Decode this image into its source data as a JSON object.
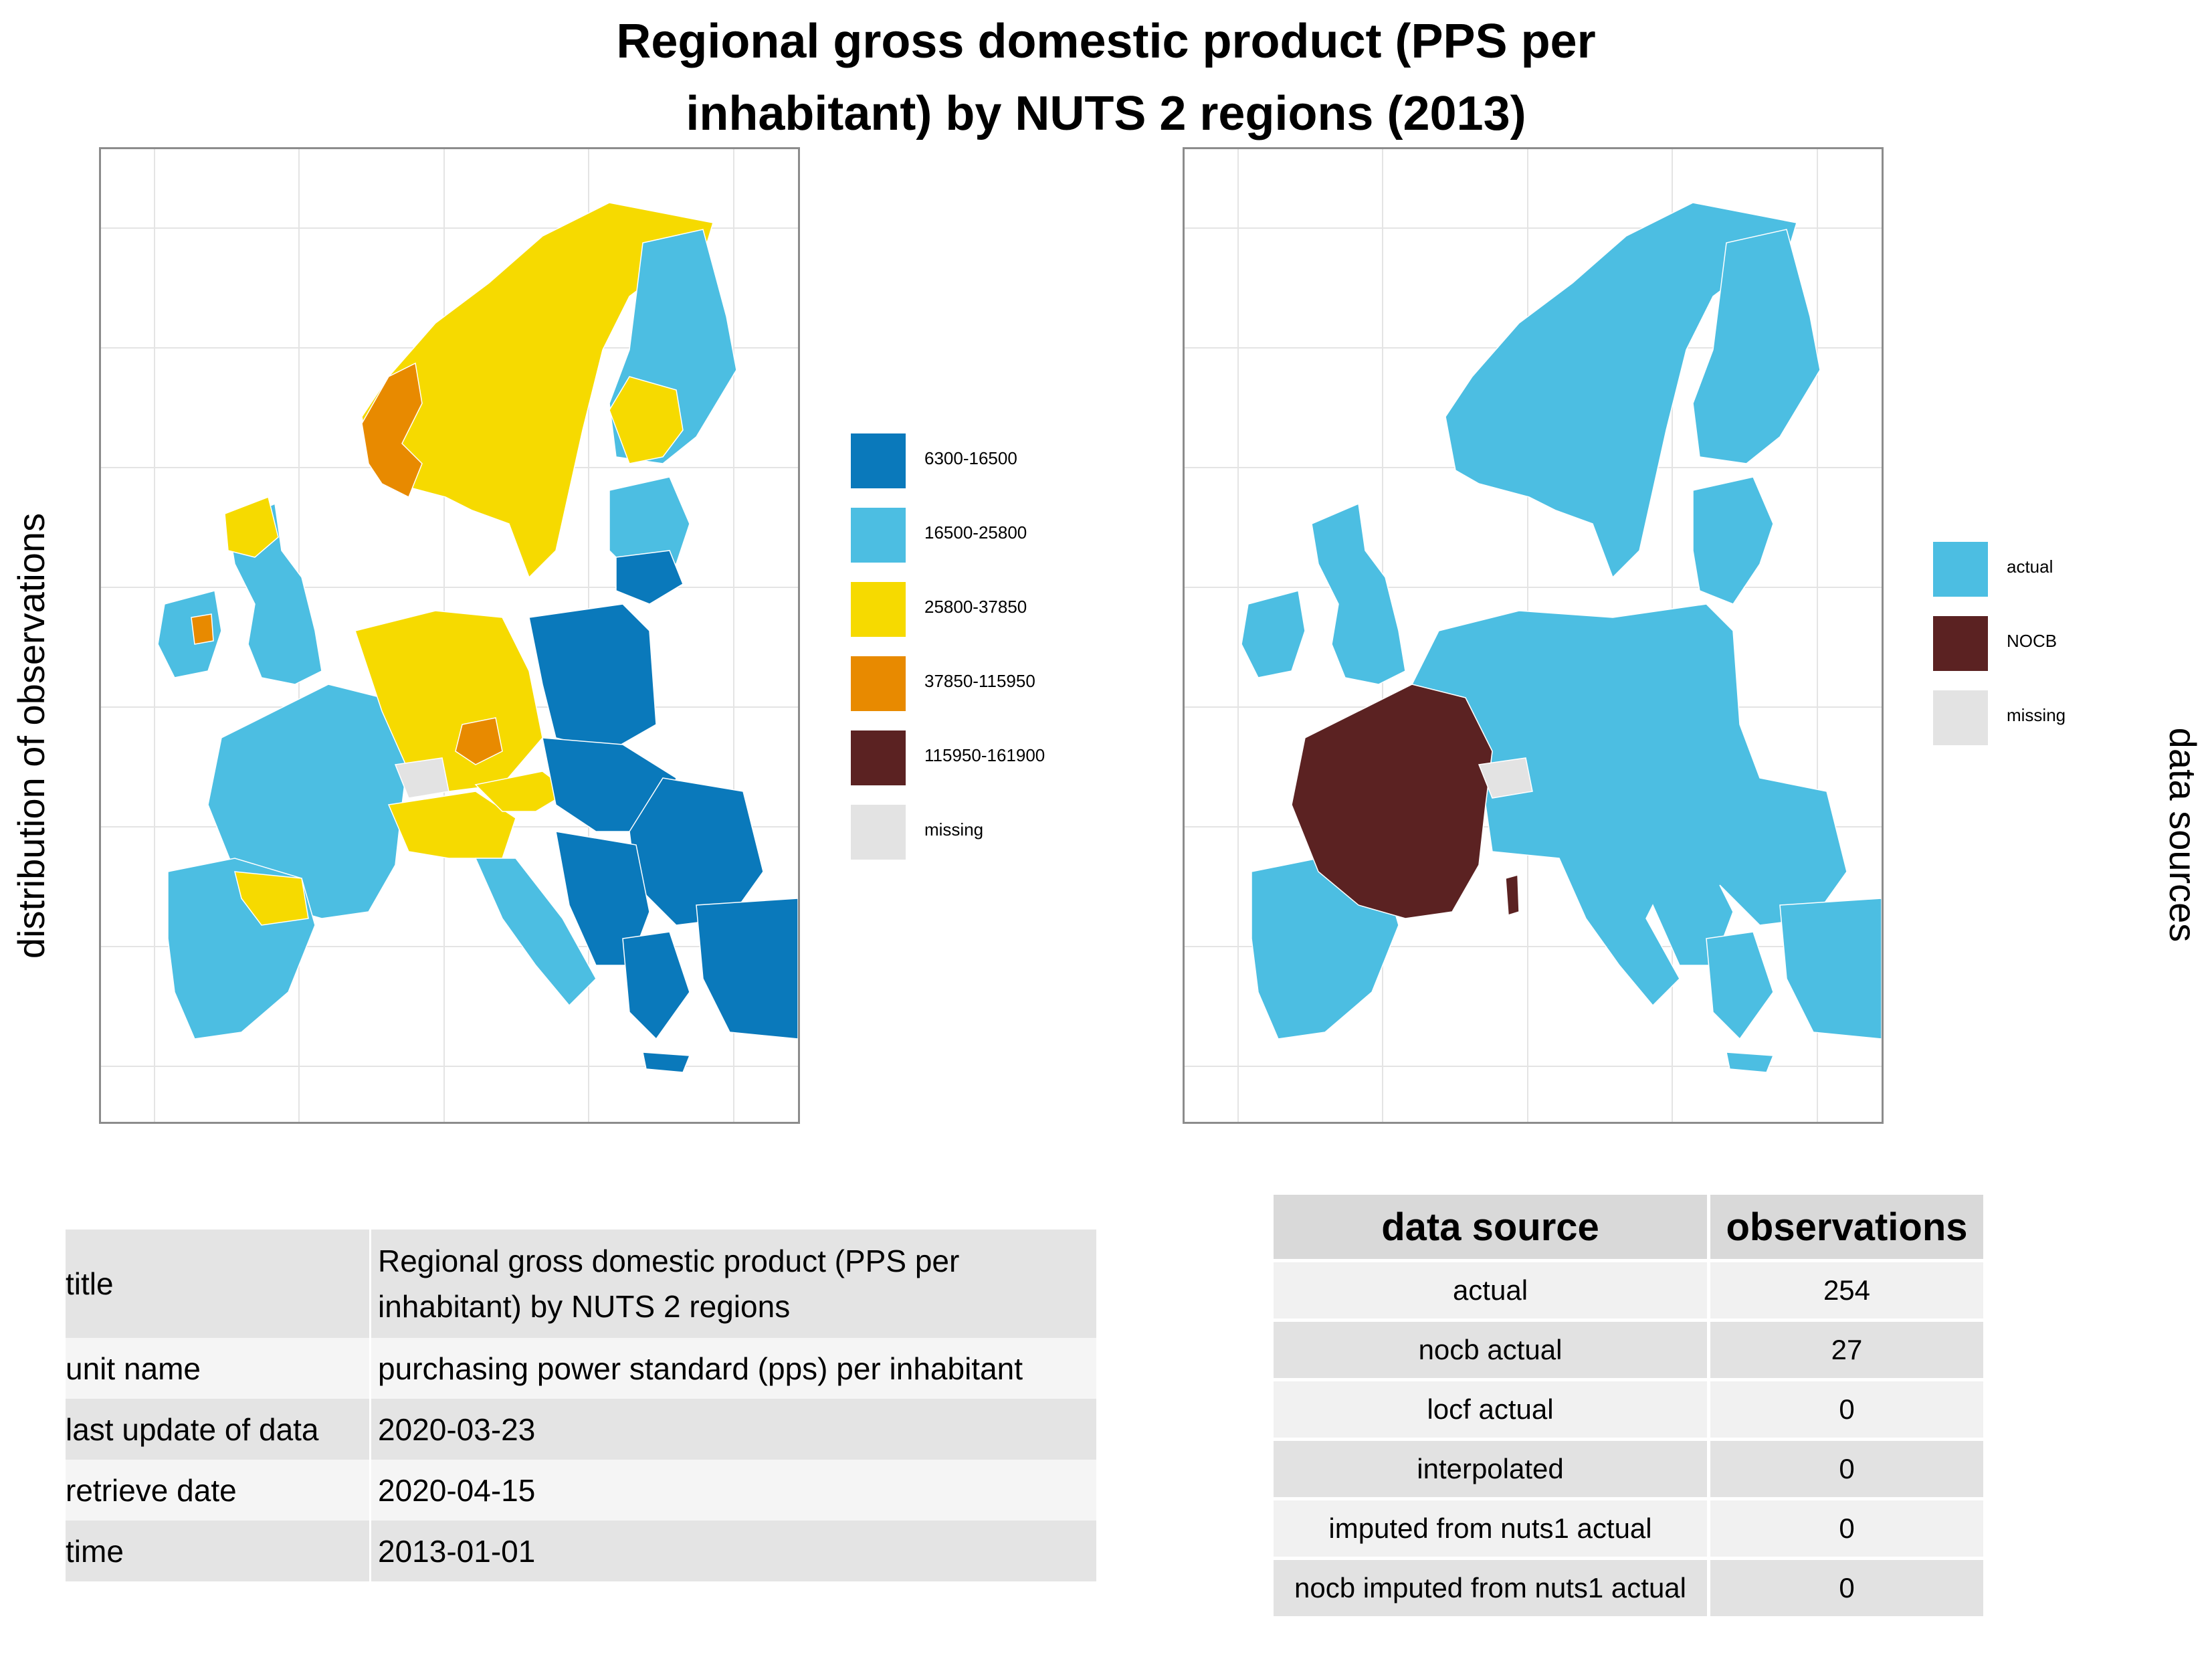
{
  "title": {
    "line1": "Regional gross domestic product (PPS per",
    "line2": "inhabitant) by NUTS 2 regions (2013)"
  },
  "left_axis_label": "distribution of observations",
  "right_axis_label": "data sources",
  "legend_left": [
    {
      "label": "6300-16500",
      "color": "#0a79bb"
    },
    {
      "label": "16500-25800",
      "color": "#4cbee2"
    },
    {
      "label": "25800-37850",
      "color": "#f6da00"
    },
    {
      "label": "37850-115950",
      "color": "#e88a00"
    },
    {
      "label": "115950-161900",
      "color": "#5b2222"
    },
    {
      "label": "missing",
      "color": "#e3e3e3"
    }
  ],
  "legend_right": [
    {
      "label": "actual",
      "color": "#4cbee2"
    },
    {
      "label": "NOCB",
      "color": "#5b2222"
    },
    {
      "label": "missing",
      "color": "#e3e3e3"
    }
  ],
  "metadata": [
    {
      "key": "title",
      "value": "Regional gross domestic product (PPS per inhabitant) by NUTS 2 regions"
    },
    {
      "key": "unit name",
      "value": "purchasing power standard (pps) per inhabitant"
    },
    {
      "key": "last update of data",
      "value": "2020-03-23"
    },
    {
      "key": "retrieve date",
      "value": "2020-04-15"
    },
    {
      "key": "time",
      "value": "2013-01-01"
    }
  ],
  "source_table": {
    "headers": [
      "data source",
      "observations"
    ],
    "rows": [
      {
        "source": "actual",
        "observations": "254"
      },
      {
        "source": "nocb actual",
        "observations": "27"
      },
      {
        "source": "locf actual",
        "observations": "0"
      },
      {
        "source": "interpolated",
        "observations": "0"
      },
      {
        "source": "imputed from nuts1 actual",
        "observations": "0"
      },
      {
        "source": "nocb imputed from nuts1 actual",
        "observations": "0"
      }
    ]
  }
}
